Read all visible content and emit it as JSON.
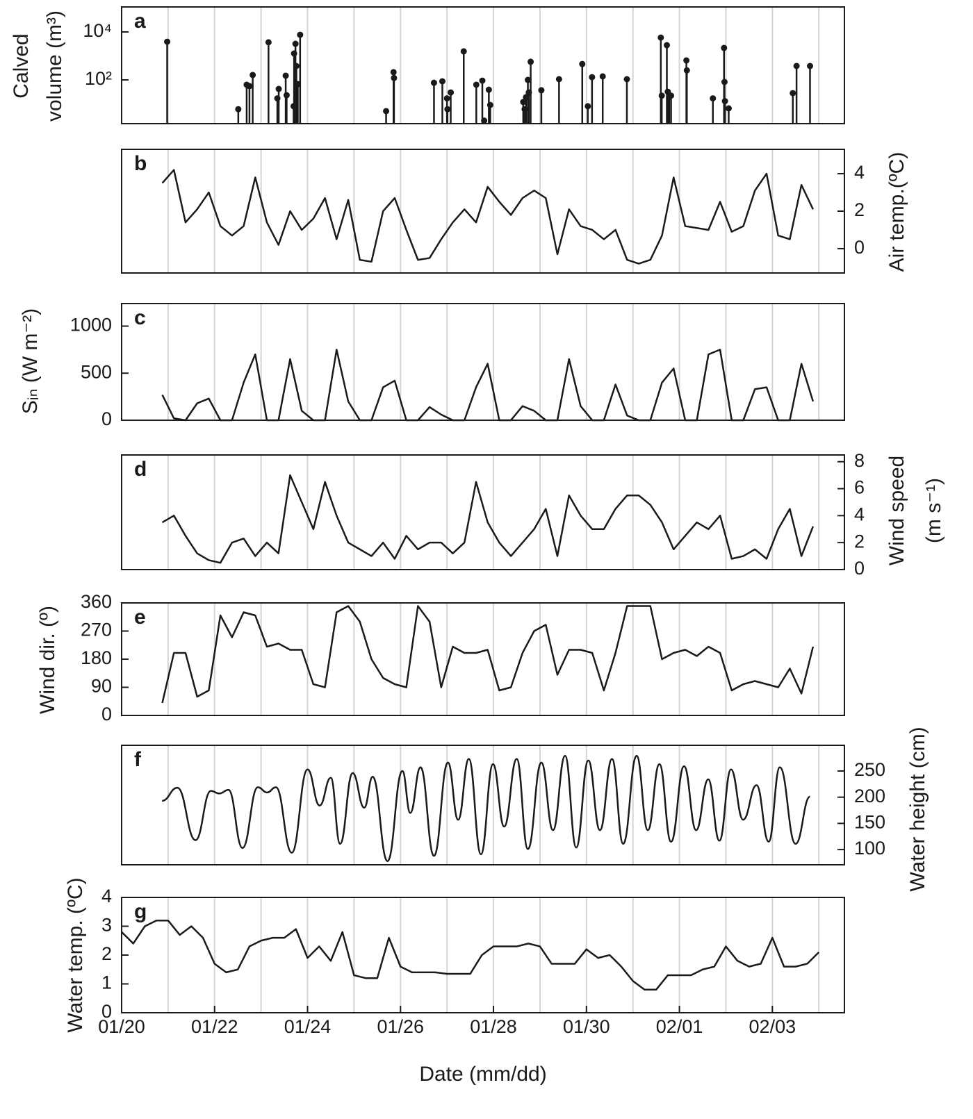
{
  "chart_data": [
    {
      "type": "stem",
      "panel_label": "a",
      "ylabel": [
        "Calved",
        "volume (m³)"
      ],
      "yaxis": "left",
      "log": true,
      "color": "#1a1a1a",
      "xlim": [
        0,
        15.55
      ],
      "ylim": [
        1.5,
        110000
      ],
      "yticks": [
        {
          "value": 100,
          "label": "10²"
        },
        {
          "value": 10000,
          "label": "10⁴"
        }
      ],
      "xgrid": [
        1,
        2,
        3,
        4,
        5,
        6,
        7,
        8,
        9,
        10,
        11,
        12,
        13,
        14,
        15
      ],
      "x": [
        0.98,
        2.51,
        2.69,
        2.75,
        2.82,
        3.16,
        3.35,
        3.38,
        3.53,
        3.55,
        3.7,
        3.71,
        3.74,
        3.76,
        3.79,
        3.84,
        5.69,
        5.85,
        5.86,
        6.72,
        6.9,
        7.0,
        7.01,
        7.08,
        7.36,
        7.63,
        7.76,
        7.8,
        7.9,
        7.93,
        8.64,
        8.67,
        8.7,
        8.74,
        8.76,
        8.8,
        9.03,
        9.41,
        9.91,
        10.03,
        10.12,
        10.35,
        10.87,
        11.6,
        11.62,
        11.73,
        11.75,
        11.78,
        11.82,
        12.15,
        12.16,
        12.72,
        12.96,
        12.97,
        12.98,
        13.06,
        14.44,
        14.52,
        14.81
      ],
      "values": [
        3900,
        6,
        63,
        55,
        160,
        3700,
        17,
        42,
        150,
        23,
        8,
        1260,
        3200,
        380,
        67,
        7600,
        5,
        210,
        120,
        76,
        87,
        17,
        6,
        30,
        1550,
        63,
        93,
        2,
        39,
        9,
        12,
        6,
        19,
        100,
        30,
        570,
        37,
        107,
        460,
        8,
        130,
        140,
        107,
        5800,
        22,
        2800,
        32,
        19,
        22,
        650,
        250,
        17,
        2150,
        82,
        13,
        6.5,
        28,
        380,
        380
      ]
    },
    {
      "type": "line",
      "panel_label": "b",
      "ylabel": [
        "Air temp.(ºC)"
      ],
      "yaxis": "right",
      "color": "#1a1a1a",
      "xlim": [
        0,
        15.55
      ],
      "ylim": [
        -1.3,
        5.3
      ],
      "yticks": [
        0,
        2,
        4
      ],
      "xgrid": [
        1,
        2,
        3,
        4,
        5,
        6,
        7,
        8,
        9,
        10,
        11,
        12,
        13,
        14,
        15
      ],
      "x": [
        0.875,
        1.125,
        1.375,
        1.625,
        1.875,
        2.125,
        2.375,
        2.625,
        2.875,
        3.125,
        3.375,
        3.625,
        3.875,
        4.125,
        4.375,
        4.625,
        4.875,
        5.125,
        5.375,
        5.625,
        5.875,
        6.125,
        6.375,
        6.625,
        6.875,
        7.125,
        7.375,
        7.625,
        7.875,
        8.125,
        8.375,
        8.625,
        8.875,
        9.125,
        9.375,
        9.625,
        9.875,
        10.125,
        10.375,
        10.625,
        10.875,
        11.125,
        11.375,
        11.625,
        11.875,
        12.125,
        12.375,
        12.625,
        12.875,
        13.125,
        13.375,
        13.625,
        13.875,
        14.125,
        14.375,
        14.625,
        14.875
      ],
      "values": [
        3.5,
        4.2,
        1.4,
        2.1,
        3.0,
        1.2,
        0.7,
        1.2,
        3.8,
        1.4,
        0.2,
        2.0,
        1.0,
        1.6,
        2.7,
        0.5,
        2.6,
        -0.6,
        -0.7,
        2.0,
        2.7,
        1.0,
        -0.6,
        -0.5,
        0.5,
        1.4,
        2.1,
        1.4,
        3.3,
        2.5,
        1.8,
        2.7,
        3.1,
        2.7,
        -0.3,
        2.1,
        1.2,
        1.0,
        0.5,
        1.0,
        -0.6,
        -0.8,
        -0.6,
        0.7,
        3.8,
        1.2,
        1.1,
        1.0,
        2.5,
        0.9,
        1.2,
        3.1,
        4.0,
        0.7,
        0.5,
        3.4,
        2.1
      ]
    },
    {
      "type": "line",
      "panel_label": "c",
      "ylabel": [
        "Sᵢₙ (W m⁻²)"
      ],
      "yaxis": "left",
      "color": "#1a1a1a",
      "xlim": [
        0,
        15.55
      ],
      "ylim": [
        0,
        1240
      ],
      "yticks": [
        0,
        500,
        1000
      ],
      "xgrid": [
        1,
        2,
        3,
        4,
        5,
        6,
        7,
        8,
        9,
        10,
        11,
        12,
        13,
        14,
        15
      ],
      "x": [
        0.875,
        1.125,
        1.375,
        1.625,
        1.875,
        2.125,
        2.375,
        2.625,
        2.875,
        3.125,
        3.375,
        3.625,
        3.875,
        4.125,
        4.375,
        4.625,
        4.875,
        5.125,
        5.375,
        5.625,
        5.875,
        6.125,
        6.375,
        6.625,
        6.875,
        7.125,
        7.375,
        7.625,
        7.875,
        8.125,
        8.375,
        8.625,
        8.875,
        9.125,
        9.375,
        9.625,
        9.875,
        10.125,
        10.375,
        10.625,
        10.875,
        11.125,
        11.375,
        11.625,
        11.875,
        12.125,
        12.375,
        12.625,
        12.875,
        13.125,
        13.375,
        13.625,
        13.875,
        14.125,
        14.375,
        14.625,
        14.875
      ],
      "values": [
        270,
        20,
        0,
        180,
        230,
        0,
        0,
        400,
        700,
        0,
        0,
        650,
        100,
        0,
        0,
        750,
        200,
        0,
        0,
        350,
        420,
        0,
        0,
        140,
        60,
        0,
        0,
        350,
        600,
        0,
        0,
        150,
        100,
        0,
        0,
        650,
        150,
        0,
        0,
        380,
        50,
        0,
        0,
        400,
        550,
        0,
        0,
        700,
        750,
        0,
        0,
        330,
        350,
        0,
        0,
        600,
        200
      ]
    },
    {
      "type": "line",
      "panel_label": "d",
      "ylabel": [
        "Wind speed",
        "(m s⁻¹)"
      ],
      "yaxis": "right",
      "color": "#1a1a1a",
      "xlim": [
        0,
        15.55
      ],
      "ylim": [
        0,
        8.5
      ],
      "yticks": [
        0,
        2,
        4,
        6,
        8
      ],
      "xgrid": [
        1,
        2,
        3,
        4,
        5,
        6,
        7,
        8,
        9,
        10,
        11,
        12,
        13,
        14,
        15
      ],
      "x": [
        0.875,
        1.125,
        1.375,
        1.625,
        1.875,
        2.125,
        2.375,
        2.625,
        2.875,
        3.125,
        3.375,
        3.625,
        3.875,
        4.125,
        4.375,
        4.625,
        4.875,
        5.125,
        5.375,
        5.625,
        5.875,
        6.125,
        6.375,
        6.625,
        6.875,
        7.125,
        7.375,
        7.625,
        7.875,
        8.125,
        8.375,
        8.625,
        8.875,
        9.125,
        9.375,
        9.625,
        9.875,
        10.125,
        10.375,
        10.625,
        10.875,
        11.125,
        11.375,
        11.625,
        11.875,
        12.125,
        12.375,
        12.625,
        12.875,
        13.125,
        13.375,
        13.625,
        13.875,
        14.125,
        14.375,
        14.625,
        14.875
      ],
      "values": [
        3.5,
        4.0,
        2.5,
        1.2,
        0.7,
        0.5,
        2.0,
        2.3,
        1.0,
        2.0,
        1.2,
        7.0,
        5.0,
        3.0,
        6.5,
        4.0,
        2.0,
        1.5,
        1.0,
        2.0,
        0.8,
        2.5,
        1.5,
        2.0,
        2.0,
        1.2,
        2.0,
        6.5,
        3.5,
        2.0,
        1.0,
        2.0,
        3.0,
        4.5,
        1.0,
        5.5,
        4.0,
        3.0,
        3.0,
        4.5,
        5.5,
        5.5,
        4.8,
        3.5,
        1.5,
        2.5,
        3.5,
        3.0,
        4.0,
        0.8,
        1.0,
        1.5,
        0.8,
        3.0,
        4.5,
        1.0,
        3.2
      ]
    },
    {
      "type": "line",
      "panel_label": "e",
      "ylabel": [
        "Wind dir. (º)"
      ],
      "yaxis": "left",
      "color": "#1a1a1a",
      "xlim": [
        0,
        15.55
      ],
      "ylim": [
        0,
        360
      ],
      "yticks": [
        0,
        90,
        180,
        270,
        360
      ],
      "xgrid": [
        1,
        2,
        3,
        4,
        5,
        6,
        7,
        8,
        9,
        10,
        11,
        12,
        13,
        14,
        15
      ],
      "x": [
        0.875,
        1.125,
        1.375,
        1.625,
        1.875,
        2.125,
        2.375,
        2.625,
        2.875,
        3.125,
        3.375,
        3.625,
        3.875,
        4.125,
        4.375,
        4.625,
        4.875,
        5.125,
        5.375,
        5.625,
        5.875,
        6.125,
        6.375,
        6.625,
        6.875,
        7.125,
        7.375,
        7.625,
        7.875,
        8.125,
        8.375,
        8.625,
        8.875,
        9.125,
        9.375,
        9.625,
        9.875,
        10.125,
        10.375,
        10.625,
        10.875,
        11.125,
        11.375,
        11.625,
        11.875,
        12.125,
        12.375,
        12.625,
        12.875,
        13.125,
        13.375,
        13.625,
        13.875,
        14.125,
        14.375,
        14.625,
        14.875
      ],
      "values": [
        40,
        200,
        200,
        60,
        80,
        320,
        250,
        330,
        320,
        220,
        230,
        210,
        210,
        100,
        90,
        330,
        350,
        300,
        180,
        120,
        100,
        90,
        350,
        300,
        90,
        220,
        200,
        200,
        210,
        80,
        90,
        200,
        270,
        290,
        130,
        210,
        210,
        200,
        80,
        200,
        350,
        350,
        350,
        180,
        200,
        210,
        190,
        220,
        200,
        80,
        100,
        110,
        100,
        90,
        150,
        70,
        220
      ]
    },
    {
      "type": "line",
      "panel_label": "f",
      "ylabel": [
        "Water height (cm)"
      ],
      "yaxis": "right",
      "smooth": true,
      "color": "#1a1a1a",
      "xlim": [
        0,
        15.55
      ],
      "ylim": [
        71,
        299
      ],
      "yticks": [
        100,
        150,
        200,
        250
      ],
      "xgrid": [
        1,
        2,
        3,
        4,
        5,
        6,
        7,
        8,
        9,
        10,
        11,
        12,
        13,
        14,
        15
      ],
      "x": [
        0.87,
        1.2,
        1.59,
        1.92,
        2.1,
        2.3,
        2.6,
        2.93,
        3.13,
        3.32,
        3.66,
        4.0,
        4.26,
        4.5,
        4.7,
        4.97,
        5.22,
        5.4,
        5.72,
        6.04,
        6.21,
        6.43,
        6.72,
        7.02,
        7.24,
        7.47,
        7.73,
        7.99,
        8.23,
        8.5,
        8.74,
        9.03,
        9.28,
        9.54,
        9.78,
        10.04,
        10.29,
        10.55,
        10.79,
        11.08,
        11.32,
        11.57,
        11.82,
        12.1,
        12.36,
        12.62,
        12.86,
        13.11,
        13.37,
        13.66,
        13.92,
        14.16,
        14.5,
        14.81
      ],
      "values": [
        193,
        218,
        118,
        212,
        207,
        214,
        103,
        219,
        209,
        219,
        94,
        253,
        184,
        237,
        111,
        246,
        180,
        239,
        78,
        250,
        170,
        257,
        88,
        266,
        157,
        273,
        91,
        263,
        144,
        273,
        101,
        266,
        137,
        279,
        104,
        270,
        137,
        273,
        111,
        279,
        137,
        263,
        115,
        259,
        137,
        234,
        117,
        253,
        157,
        223,
        115,
        257,
        111,
        201
      ]
    },
    {
      "type": "line",
      "panel_label": "g",
      "ylabel": [
        "Water temp. (ºC)"
      ],
      "yaxis": "left",
      "color": "#1a1a1a",
      "xlim": [
        0,
        15.55
      ],
      "ylim": [
        0,
        4
      ],
      "yticks": [
        0,
        1,
        2,
        3,
        4
      ],
      "xgrid": [
        1,
        2,
        3,
        4,
        5,
        6,
        7,
        8,
        9,
        10,
        11,
        12,
        13,
        14,
        15
      ],
      "xticks": [
        {
          "value": 0,
          "label": "01/20"
        },
        {
          "value": 2,
          "label": "01/22"
        },
        {
          "value": 4,
          "label": "01/24"
        },
        {
          "value": 6,
          "label": "01/26"
        },
        {
          "value": 8,
          "label": "01/28"
        },
        {
          "value": 10,
          "label": "01/30"
        },
        {
          "value": 12,
          "label": "02/01"
        },
        {
          "value": 14,
          "label": "02/03"
        }
      ],
      "xlabel": "Date (mm/dd)",
      "x": [
        0,
        0.25,
        0.5,
        0.75,
        1,
        1.25,
        1.5,
        1.75,
        2,
        2.25,
        2.5,
        2.75,
        3,
        3.25,
        3.5,
        3.75,
        4,
        4.25,
        4.5,
        4.75,
        5,
        5.25,
        5.5,
        5.75,
        6,
        6.25,
        6.5,
        6.75,
        7,
        7.25,
        7.5,
        7.75,
        8,
        8.25,
        8.5,
        8.75,
        9,
        9.25,
        9.5,
        9.75,
        10,
        10.25,
        10.5,
        10.75,
        11,
        11.25,
        11.5,
        11.75,
        12,
        12.25,
        12.5,
        12.75,
        13,
        13.25,
        13.5,
        13.75,
        14,
        14.25,
        14.5,
        14.75,
        15
      ],
      "values": [
        2.8,
        2.4,
        3.0,
        3.2,
        3.2,
        2.7,
        3.0,
        2.6,
        1.7,
        1.4,
        1.5,
        2.3,
        2.5,
        2.6,
        2.6,
        2.9,
        1.9,
        2.3,
        1.8,
        2.8,
        1.3,
        1.2,
        1.2,
        2.6,
        1.6,
        1.4,
        1.4,
        1.4,
        1.35,
        1.35,
        1.35,
        2.0,
        2.3,
        2.3,
        2.3,
        2.4,
        2.3,
        1.7,
        1.7,
        1.7,
        2.2,
        1.9,
        2.0,
        1.6,
        1.1,
        0.8,
        0.8,
        1.3,
        1.3,
        1.3,
        1.5,
        1.6,
        2.3,
        1.8,
        1.6,
        1.7,
        2.6,
        1.6,
        1.6,
        1.7,
        2.1
      ]
    }
  ]
}
